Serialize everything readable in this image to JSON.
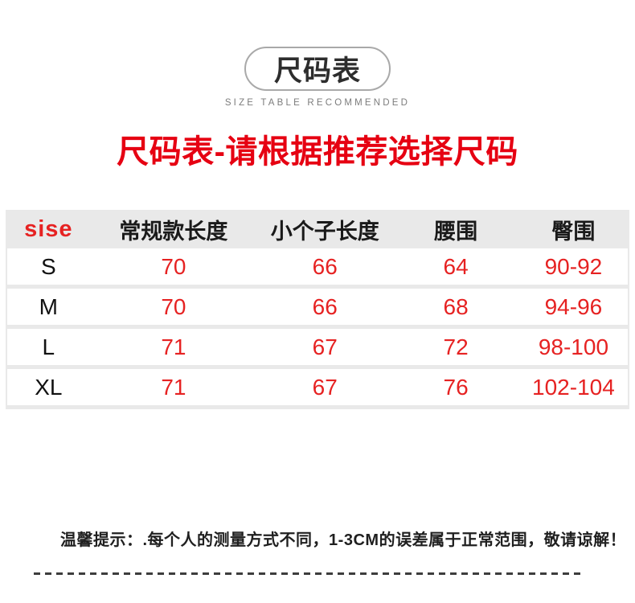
{
  "badge": {
    "title": "尺码表",
    "subtitle": "SIZE TABLE RECOMMENDED"
  },
  "heading": "尺码表-请根据推荐选择尺码",
  "table": {
    "headers": [
      "sise",
      "常规款长度",
      "小个子长度",
      "腰围",
      "臀围"
    ],
    "rows": [
      {
        "size": "S",
        "regular_length": "70",
        "petite_length": "66",
        "waist": "64",
        "hip": "90-92"
      },
      {
        "size": "M",
        "regular_length": "70",
        "petite_length": "66",
        "waist": "68",
        "hip": "94-96"
      },
      {
        "size": "L",
        "regular_length": "71",
        "petite_length": "67",
        "waist": "72",
        "hip": "98-100"
      },
      {
        "size": "XL",
        "regular_length": "71",
        "petite_length": "67",
        "waist": "76",
        "hip": "102-104"
      }
    ]
  },
  "note": "温馨提示：.每个人的测量方式不同，1-3CM的误差属于正常范围，敬请谅解！",
  "colors": {
    "accent_red": "#e60012",
    "value_red": "#e62222",
    "table_bg_gray": "#e9e9e9",
    "badge_border_gray": "#a9a9a9",
    "subtitle_gray": "#7c7c7c",
    "text_dark": "#1a1a1a"
  }
}
